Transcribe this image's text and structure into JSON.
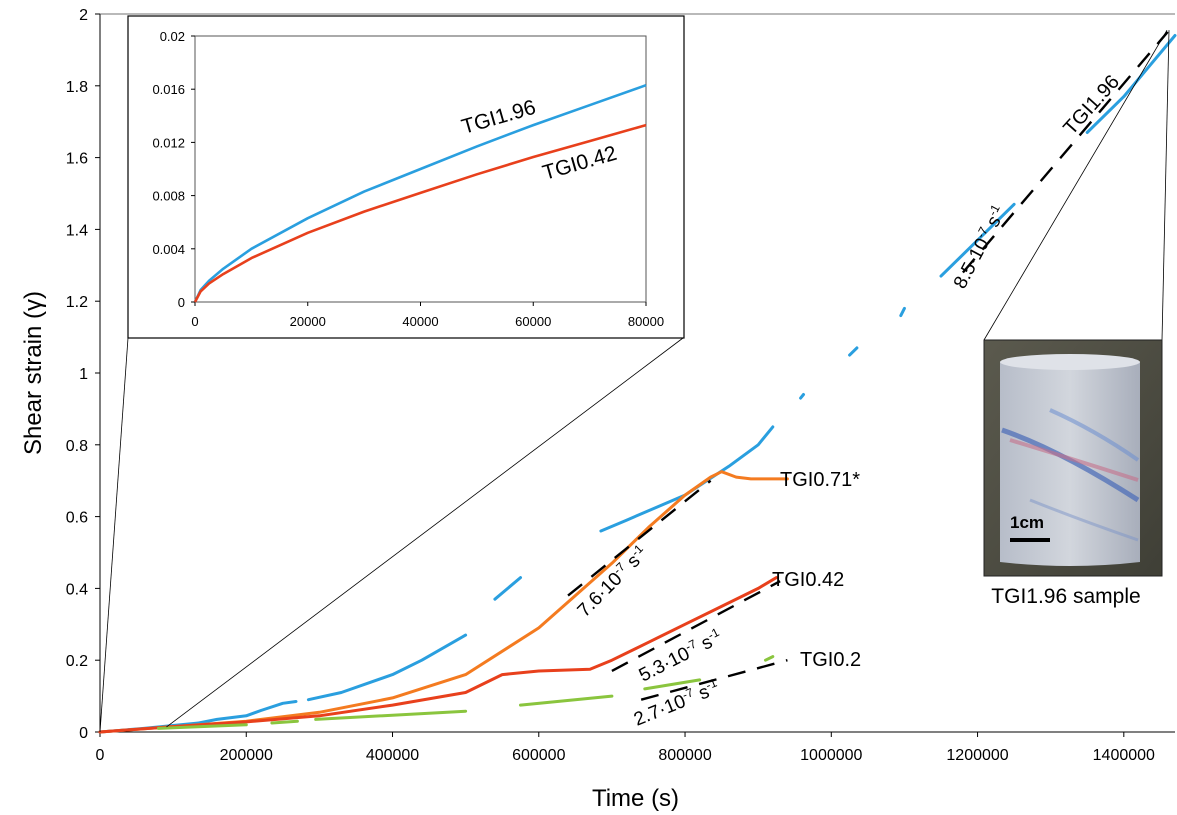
{
  "colors": {
    "TGI1.96": "#2a9fdf",
    "TGI0.71*": "#f47b20",
    "TGI0.42": "#e8401c",
    "TGI0.2": "#8ac53e",
    "axis": "#000000"
  },
  "chart_data": {
    "type": "line",
    "title": "",
    "xlabel": "Time (s)",
    "ylabel": "Shear strain (γ)",
    "xlim": [
      0,
      1470000
    ],
    "ylim": [
      0,
      2
    ],
    "x_ticks": [
      "0",
      "200000",
      "400000",
      "600000",
      "800000",
      "1000000",
      "1200000",
      "1400000"
    ],
    "y_ticks": [
      "0",
      "0.2",
      "0.4",
      "0.6",
      "0.8",
      "1",
      "1.2",
      "1.4",
      "1.6",
      "1.8",
      "2"
    ],
    "grid": false,
    "series": [
      {
        "name": "TGI1.96",
        "color": "#2a9fdf",
        "segments": [
          [
            [
              0,
              0.0
            ],
            [
              60000,
              0.01
            ],
            [
              100000,
              0.018
            ],
            [
              135000,
              0.025
            ]
          ],
          [
            [
              135000,
              0.025
            ],
            [
              160000,
              0.035
            ],
            [
              200000,
              0.045
            ],
            [
              220000,
              0.06
            ],
            [
              250000,
              0.08
            ],
            [
              268000,
              0.085
            ]
          ],
          [
            [
              285000,
              0.09
            ],
            [
              330000,
              0.11
            ],
            [
              400000,
              0.16
            ],
            [
              440000,
              0.2
            ],
            [
              500000,
              0.27
            ]
          ],
          [
            [
              540000,
              0.37
            ],
            [
              575000,
              0.43
            ]
          ],
          [
            [
              685000,
              0.56
            ],
            [
              720000,
              0.59
            ],
            [
              800000,
              0.66
            ],
            [
              860000,
              0.74
            ],
            [
              900000,
              0.8
            ],
            [
              920000,
              0.85
            ]
          ],
          [
            [
              958000,
              0.93
            ],
            [
              962000,
              0.94
            ]
          ],
          [
            [
              1025000,
              1.05
            ],
            [
              1035000,
              1.07
            ]
          ],
          [
            [
              1095000,
              1.16
            ],
            [
              1100000,
              1.18
            ]
          ],
          [
            [
              1150000,
              1.27
            ],
            [
              1200000,
              1.37
            ],
            [
              1250000,
              1.47
            ]
          ],
          [
            [
              1350000,
              1.67
            ],
            [
              1400000,
              1.77
            ],
            [
              1470000,
              1.94
            ]
          ]
        ],
        "label": "TGI1.96"
      },
      {
        "name": "TGI0.71*",
        "color": "#f47b20",
        "segments": [
          [
            [
              0,
              0.0
            ],
            [
              100000,
              0.015
            ],
            [
              200000,
              0.03
            ],
            [
              300000,
              0.055
            ],
            [
              400000,
              0.095
            ],
            [
              500000,
              0.16
            ],
            [
              600000,
              0.29
            ],
            [
              650000,
              0.38
            ],
            [
              700000,
              0.47
            ],
            [
              750000,
              0.57
            ],
            [
              800000,
              0.66
            ],
            [
              835000,
              0.71
            ],
            [
              850000,
              0.725
            ],
            [
              870000,
              0.71
            ],
            [
              890000,
              0.705
            ],
            [
              940000,
              0.705
            ]
          ]
        ],
        "label": "TGI0.71*"
      },
      {
        "name": "TGI0.42",
        "color": "#e8401c",
        "segments": [
          [
            [
              0,
              0.0
            ],
            [
              100000,
              0.015
            ],
            [
              200000,
              0.028
            ],
            [
              300000,
              0.045
            ],
            [
              400000,
              0.075
            ],
            [
              500000,
              0.11
            ],
            [
              550000,
              0.16
            ],
            [
              600000,
              0.17
            ],
            [
              670000,
              0.175
            ],
            [
              700000,
              0.2
            ],
            [
              750000,
              0.25
            ],
            [
              800000,
              0.3
            ],
            [
              850000,
              0.35
            ],
            [
              900000,
              0.4
            ],
            [
              925000,
              0.43
            ]
          ]
        ],
        "label": "TGI0.42"
      },
      {
        "name": "TGI0.2",
        "color": "#8ac53e",
        "segments": [
          [
            [
              80000,
              0.01
            ],
            [
              200000,
              0.02
            ]
          ],
          [
            [
              235000,
              0.025
            ],
            [
              270000,
              0.03
            ]
          ],
          [
            [
              295000,
              0.035
            ],
            [
              500000,
              0.058
            ]
          ],
          [
            [
              575000,
              0.075
            ],
            [
              700000,
              0.1
            ]
          ],
          [
            [
              745000,
              0.12
            ],
            [
              820000,
              0.145
            ]
          ],
          [
            [
              910000,
              0.2
            ],
            [
              920000,
              0.21
            ]
          ]
        ],
        "label": "TGI0.2"
      }
    ],
    "rate_annotations": [
      {
        "text_base": "8.5·10",
        "exp": "-7",
        "unit": " s",
        "unit_exp": "-1",
        "line": [
          [
            1180000,
            1.28
          ],
          [
            1460000,
            1.95
          ]
        ]
      },
      {
        "text_base": "7.6·10",
        "exp": "-7",
        "unit": " s",
        "unit_exp": "-1",
        "line": [
          [
            640000,
            0.38
          ],
          [
            835000,
            0.7
          ]
        ]
      },
      {
        "text_base": "5.3·10",
        "exp": "-7",
        "unit": " s",
        "unit_exp": "-1",
        "line": [
          [
            700000,
            0.17
          ],
          [
            930000,
            0.42
          ]
        ]
      },
      {
        "text_base": "2.7·10",
        "exp": "-7",
        "unit": " s",
        "unit_exp": "-1",
        "line": [
          [
            740000,
            0.09
          ],
          [
            940000,
            0.2
          ]
        ]
      }
    ],
    "inset": {
      "xlim": [
        0,
        80000
      ],
      "ylim": [
        0,
        0.02
      ],
      "x_ticks": [
        "0",
        "20000",
        "40000",
        "60000",
        "80000"
      ],
      "y_ticks": [
        "0",
        "0.004",
        "0.008",
        "0.012",
        "0.016",
        "0.02"
      ],
      "series": [
        {
          "name": "TGI1.96",
          "color": "#2a9fdf",
          "points": [
            [
              0,
              0
            ],
            [
              1000,
              0.0009
            ],
            [
              2500,
              0.0016
            ],
            [
              5000,
              0.0025
            ],
            [
              10000,
              0.004
            ],
            [
              20000,
              0.0063
            ],
            [
              30000,
              0.0083
            ],
            [
              40000,
              0.01
            ],
            [
              50000,
              0.0117
            ],
            [
              60000,
              0.0133
            ],
            [
              70000,
              0.0148
            ],
            [
              80000,
              0.0163
            ]
          ]
        },
        {
          "name": "TGI0.42",
          "color": "#e8401c",
          "points": [
            [
              0,
              0
            ],
            [
              1000,
              0.0008
            ],
            [
              2500,
              0.0014
            ],
            [
              5000,
              0.0021
            ],
            [
              10000,
              0.0033
            ],
            [
              20000,
              0.0052
            ],
            [
              30000,
              0.0068
            ],
            [
              40000,
              0.0082
            ],
            [
              50000,
              0.0096
            ],
            [
              60000,
              0.0109
            ],
            [
              70000,
              0.0121
            ],
            [
              80000,
              0.0133
            ]
          ]
        }
      ],
      "labels": [
        "TGI1.96",
        "TGI0.42"
      ]
    }
  },
  "photo": {
    "caption": "TGI1.96 sample",
    "scale_label": "1cm",
    "overlay_label": "TGI1.96"
  }
}
